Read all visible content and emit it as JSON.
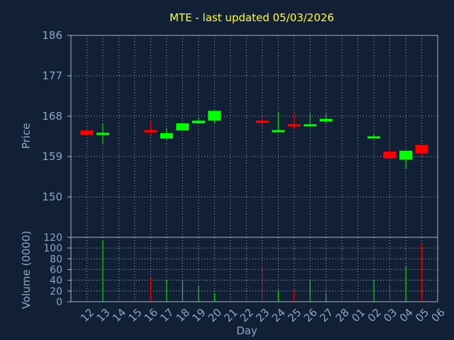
{
  "chart_data": [
    {
      "type": "candlestick",
      "title": "MTE - last updated 05/03/2026",
      "ylabel": "Price",
      "ylim": [
        141,
        186
      ],
      "yticks": [
        186,
        177,
        168,
        159,
        150
      ],
      "colors": {
        "up": "#00ff00",
        "down": "#ff0000"
      },
      "grid": true,
      "candles": [
        {
          "day": "12",
          "open": 164.8,
          "close": 163.8,
          "high": 164.8,
          "low": 163.8
        },
        {
          "day": "13",
          "open": 163.8,
          "close": 164.3,
          "high": 166.2,
          "low": 161.9
        },
        {
          "day": "16",
          "open": 164.9,
          "close": 164.4,
          "high": 167.0,
          "low": 163.5
        },
        {
          "day": "17",
          "open": 163.0,
          "close": 164.2,
          "high": 165.3,
          "low": 162.8
        },
        {
          "day": "18",
          "open": 164.8,
          "close": 166.4,
          "high": 166.5,
          "low": 164.8
        },
        {
          "day": "19",
          "open": 166.4,
          "close": 167.0,
          "high": 167.6,
          "low": 166.2
        },
        {
          "day": "20",
          "open": 167.0,
          "close": 169.2,
          "high": 169.2,
          "low": 166.5
        },
        {
          "day": "23",
          "open": 167.0,
          "close": 166.6,
          "high": 168.2,
          "low": 165.0
        },
        {
          "day": "24",
          "open": 164.6,
          "close": 164.9,
          "high": 168.8,
          "low": 164.6
        },
        {
          "day": "25",
          "open": 166.2,
          "close": 165.7,
          "high": 168.6,
          "low": 165.0
        },
        {
          "day": "26",
          "open": 166.1,
          "close": 166.2,
          "high": 168.6,
          "low": 166.0
        },
        {
          "day": "27",
          "open": 166.8,
          "close": 167.4,
          "high": 168.6,
          "low": 166.5
        },
        {
          "day": "02",
          "open": 163.4,
          "close": 163.5,
          "high": 164.0,
          "low": 163.4
        },
        {
          "day": "03",
          "open": 160.1,
          "close": 158.6,
          "high": 163.0,
          "low": 157.8
        },
        {
          "day": "04",
          "open": 158.3,
          "close": 160.3,
          "high": 160.3,
          "low": 156.3
        },
        {
          "day": "05",
          "open": 161.6,
          "close": 159.7,
          "high": 161.6,
          "low": 158.9
        }
      ]
    },
    {
      "type": "bar",
      "ylabel": "Volume (0000)",
      "xlabel": "Day",
      "ylim": [
        0,
        120
      ],
      "yticks": [
        0,
        20,
        40,
        60,
        80,
        100,
        120
      ],
      "categories": [
        "12",
        "13",
        "14",
        "15",
        "16",
        "17",
        "18",
        "19",
        "20",
        "21",
        "22",
        "23",
        "24",
        "25",
        "26",
        "27",
        "28",
        "01",
        "02",
        "03",
        "04",
        "05",
        "06"
      ],
      "values": [
        null,
        115,
        null,
        null,
        45,
        41,
        40,
        30,
        16,
        null,
        null,
        68,
        22,
        21,
        42,
        16,
        null,
        null,
        40,
        29,
        66,
        107,
        null
      ],
      "bar_colors": [
        null,
        "up",
        null,
        null,
        "down",
        "up",
        "up",
        "up",
        "up",
        null,
        null,
        "down",
        "up",
        "down",
        "up",
        "up",
        null,
        null,
        "up",
        "down",
        "up",
        "down",
        null
      ]
    }
  ]
}
